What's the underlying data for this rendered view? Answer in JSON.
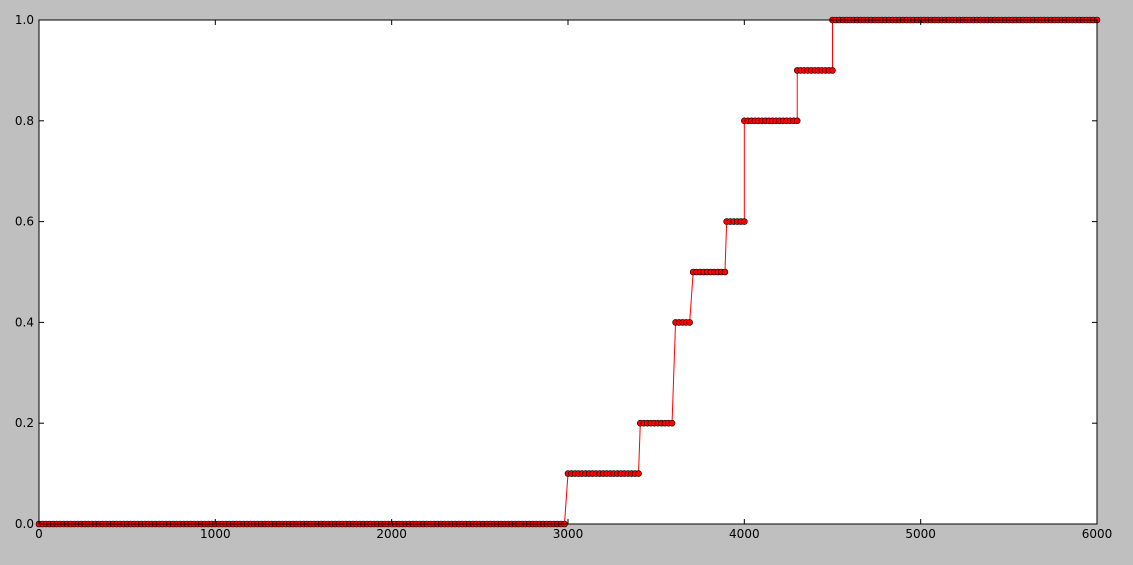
{
  "chart_data": {
    "type": "line",
    "title": "",
    "xlabel": "",
    "ylabel": "",
    "xlim": [
      0,
      6000
    ],
    "ylim": [
      0,
      1
    ],
    "xticks": [
      0,
      1000,
      2000,
      3000,
      4000,
      5000,
      6000
    ],
    "xtick_labels": [
      "0",
      "1000",
      "2000",
      "3000",
      "4000",
      "5000",
      "6000"
    ],
    "yticks": [
      0,
      0.2,
      0.4,
      0.6,
      0.8,
      1.0
    ],
    "ytick_labels": [
      "0.0",
      "0.2",
      "0.4",
      "0.6",
      "0.8",
      "1.0"
    ],
    "grid": false,
    "legend": "none",
    "marker_step": 20,
    "series": [
      {
        "color": "#ff0000",
        "marker": "circle",
        "steps": [
          {
            "x_start": 0,
            "x_end": 2990,
            "y": 0.0
          },
          {
            "x_start": 3000,
            "x_end": 3400,
            "y": 0.1
          },
          {
            "x_start": 3410,
            "x_end": 3600,
            "y": 0.2
          },
          {
            "x_start": 3610,
            "x_end": 3700,
            "y": 0.4
          },
          {
            "x_start": 3710,
            "x_end": 3890,
            "y": 0.5
          },
          {
            "x_start": 3900,
            "x_end": 4000,
            "y": 0.6
          },
          {
            "x_start": 4000,
            "x_end": 4300,
            "y": 0.8
          },
          {
            "x_start": 4300,
            "x_end": 4500,
            "y": 0.9
          },
          {
            "x_start": 4500,
            "x_end": 6000,
            "y": 1.0
          }
        ]
      }
    ]
  }
}
